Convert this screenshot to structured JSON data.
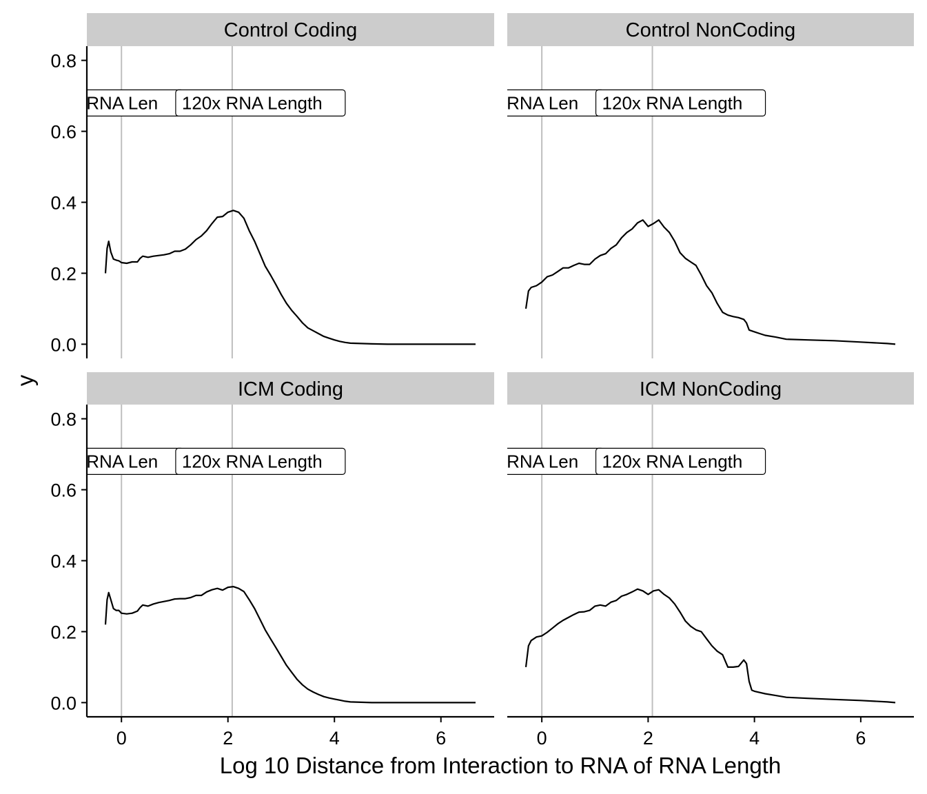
{
  "chart_data": {
    "type": "line",
    "layout": "facet-grid 2x2, shared axes",
    "xlabel": "Log 10 Distance from Interaction to RNA of RNA Length",
    "ylabel": "y",
    "xlim": [
      -0.65,
      7.0
    ],
    "ylim": [
      -0.04,
      0.84
    ],
    "x_ticks": [
      0,
      2,
      4,
      6
    ],
    "x_tick_labels": [
      "0",
      "2",
      "4",
      "6"
    ],
    "y_ticks": [
      0.0,
      0.2,
      0.4,
      0.6,
      0.8
    ],
    "y_tick_labels": [
      "0.0",
      "0.2",
      "0.4",
      "0.6",
      "0.8"
    ],
    "grid": false,
    "line_color": "#000000",
    "reference_line_color": "#bebebe",
    "strip_color": "#cccccc",
    "reference_lines": [
      {
        "x": 0.0,
        "label": "RNA Length",
        "label_shown": "RNA Len",
        "label_y": 0.68
      },
      {
        "x": 2.08,
        "label": "120x RNA Length",
        "label_y": 0.68
      }
    ],
    "panels": [
      {
        "title": "Control Coding",
        "series": [
          {
            "x": [
              -0.3,
              -0.27,
              -0.24,
              -0.2,
              -0.15,
              -0.1,
              -0.05,
              0.0,
              0.1,
              0.2,
              0.3,
              0.35,
              0.4,
              0.5,
              0.6,
              0.7,
              0.8,
              0.9,
              1.0,
              1.1,
              1.2,
              1.3,
              1.4,
              1.5,
              1.6,
              1.7,
              1.8,
              1.9,
              2.0,
              2.1,
              2.2,
              2.3,
              2.4,
              2.5,
              2.6,
              2.7,
              2.8,
              2.9,
              3.0,
              3.1,
              3.2,
              3.3,
              3.4,
              3.5,
              3.6,
              3.7,
              3.8,
              3.9,
              4.0,
              4.1,
              4.2,
              4.3,
              4.5,
              4.7,
              5.0,
              5.5,
              6.0,
              6.5,
              6.65
            ],
            "y": [
              0.2,
              0.27,
              0.29,
              0.26,
              0.24,
              0.237,
              0.235,
              0.23,
              0.228,
              0.232,
              0.232,
              0.242,
              0.248,
              0.245,
              0.248,
              0.25,
              0.252,
              0.255,
              0.262,
              0.262,
              0.268,
              0.28,
              0.295,
              0.305,
              0.32,
              0.34,
              0.358,
              0.36,
              0.372,
              0.377,
              0.372,
              0.355,
              0.32,
              0.29,
              0.255,
              0.22,
              0.195,
              0.168,
              0.14,
              0.115,
              0.095,
              0.078,
              0.06,
              0.046,
              0.038,
              0.03,
              0.022,
              0.017,
              0.012,
              0.008,
              0.005,
              0.003,
              0.002,
              0.001,
              0.0,
              0.0,
              0.0,
              0.0,
              0.0
            ]
          }
        ]
      },
      {
        "title": "Control NonCoding",
        "series": [
          {
            "x": [
              -0.3,
              -0.25,
              -0.2,
              -0.1,
              0.0,
              0.1,
              0.2,
              0.3,
              0.4,
              0.5,
              0.6,
              0.7,
              0.8,
              0.9,
              1.0,
              1.1,
              1.2,
              1.3,
              1.4,
              1.5,
              1.6,
              1.7,
              1.8,
              1.9,
              2.0,
              2.1,
              2.2,
              2.3,
              2.4,
              2.5,
              2.6,
              2.7,
              2.8,
              2.9,
              3.0,
              3.1,
              3.2,
              3.3,
              3.4,
              3.5,
              3.6,
              3.7,
              3.8,
              3.85,
              3.9,
              4.0,
              4.1,
              4.2,
              4.4,
              4.6,
              5.0,
              5.5,
              6.0,
              6.5,
              6.65
            ],
            "y": [
              0.1,
              0.15,
              0.16,
              0.165,
              0.175,
              0.19,
              0.195,
              0.205,
              0.215,
              0.215,
              0.222,
              0.228,
              0.225,
              0.225,
              0.24,
              0.25,
              0.255,
              0.27,
              0.28,
              0.3,
              0.315,
              0.325,
              0.342,
              0.35,
              0.332,
              0.34,
              0.35,
              0.33,
              0.315,
              0.29,
              0.258,
              0.242,
              0.232,
              0.222,
              0.195,
              0.165,
              0.145,
              0.115,
              0.09,
              0.082,
              0.078,
              0.075,
              0.07,
              0.06,
              0.04,
              0.035,
              0.03,
              0.025,
              0.02,
              0.014,
              0.012,
              0.01,
              0.006,
              0.002,
              0.0
            ]
          }
        ]
      },
      {
        "title": "ICM Coding",
        "series": [
          {
            "x": [
              -0.3,
              -0.27,
              -0.24,
              -0.2,
              -0.15,
              -0.1,
              -0.05,
              0.0,
              0.1,
              0.2,
              0.3,
              0.35,
              0.4,
              0.5,
              0.6,
              0.7,
              0.8,
              0.9,
              1.0,
              1.1,
              1.2,
              1.3,
              1.4,
              1.5,
              1.6,
              1.7,
              1.8,
              1.9,
              2.0,
              2.1,
              2.2,
              2.3,
              2.4,
              2.5,
              2.6,
              2.7,
              2.8,
              2.9,
              3.0,
              3.1,
              3.2,
              3.3,
              3.4,
              3.5,
              3.6,
              3.7,
              3.8,
              3.9,
              4.0,
              4.1,
              4.2,
              4.3,
              4.5,
              4.7,
              5.0,
              5.5,
              6.0,
              6.5,
              6.65
            ],
            "y": [
              0.22,
              0.29,
              0.31,
              0.29,
              0.265,
              0.26,
              0.26,
              0.252,
              0.25,
              0.252,
              0.258,
              0.268,
              0.275,
              0.272,
              0.278,
              0.282,
              0.285,
              0.288,
              0.292,
              0.293,
              0.293,
              0.296,
              0.302,
              0.302,
              0.312,
              0.318,
              0.322,
              0.317,
              0.325,
              0.327,
              0.322,
              0.313,
              0.29,
              0.265,
              0.235,
              0.205,
              0.18,
              0.155,
              0.13,
              0.105,
              0.085,
              0.065,
              0.05,
              0.038,
              0.03,
              0.023,
              0.017,
              0.013,
              0.01,
              0.007,
              0.004,
              0.002,
              0.001,
              0.0,
              0.0,
              0.0,
              0.0,
              0.0,
              0.0
            ]
          }
        ]
      },
      {
        "title": "ICM NonCoding",
        "series": [
          {
            "x": [
              -0.3,
              -0.25,
              -0.2,
              -0.1,
              0.0,
              0.1,
              0.2,
              0.3,
              0.4,
              0.5,
              0.6,
              0.7,
              0.8,
              0.9,
              1.0,
              1.1,
              1.2,
              1.3,
              1.4,
              1.5,
              1.6,
              1.7,
              1.8,
              1.9,
              2.0,
              2.1,
              2.2,
              2.3,
              2.4,
              2.5,
              2.6,
              2.7,
              2.8,
              2.9,
              3.0,
              3.1,
              3.2,
              3.3,
              3.4,
              3.5,
              3.6,
              3.7,
              3.8,
              3.85,
              3.9,
              3.95,
              4.0,
              4.2,
              4.4,
              4.6,
              5.0,
              5.5,
              6.0,
              6.5,
              6.65
            ],
            "y": [
              0.1,
              0.16,
              0.175,
              0.185,
              0.188,
              0.198,
              0.21,
              0.222,
              0.232,
              0.24,
              0.248,
              0.255,
              0.256,
              0.26,
              0.272,
              0.275,
              0.272,
              0.283,
              0.288,
              0.3,
              0.305,
              0.312,
              0.32,
              0.315,
              0.305,
              0.315,
              0.318,
              0.305,
              0.295,
              0.278,
              0.255,
              0.23,
              0.215,
              0.205,
              0.2,
              0.18,
              0.16,
              0.145,
              0.135,
              0.1,
              0.1,
              0.102,
              0.12,
              0.11,
              0.06,
              0.035,
              0.032,
              0.025,
              0.02,
              0.015,
              0.012,
              0.009,
              0.006,
              0.002,
              0.0
            ]
          }
        ]
      }
    ]
  }
}
